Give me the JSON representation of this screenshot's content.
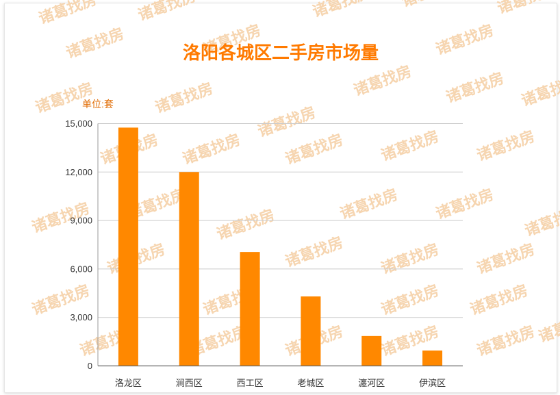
{
  "watermark": {
    "text": "诸葛找房",
    "color": "#f6d5b0"
  },
  "colors": {
    "bar": "#ff8800",
    "title": "#ff7a00",
    "unit": "#e06a00",
    "grid": "#cccccc",
    "axis": "#999999"
  },
  "chart_data": {
    "type": "bar",
    "title": "洛阳各城区二手房市场量",
    "unit_label": "单位:套",
    "categories": [
      "洛龙区",
      "涧西区",
      "西工区",
      "老城区",
      "瀍河区",
      "伊滨区"
    ],
    "values": [
      14750,
      12000,
      7050,
      4300,
      1850,
      950
    ],
    "yticks": [
      "0",
      "3,000",
      "6,000",
      "9,000",
      "12,000",
      "15,000"
    ],
    "ytick_values": [
      0,
      3000,
      6000,
      9000,
      12000,
      15000
    ],
    "ylim": [
      0,
      15000
    ],
    "grid": true
  }
}
